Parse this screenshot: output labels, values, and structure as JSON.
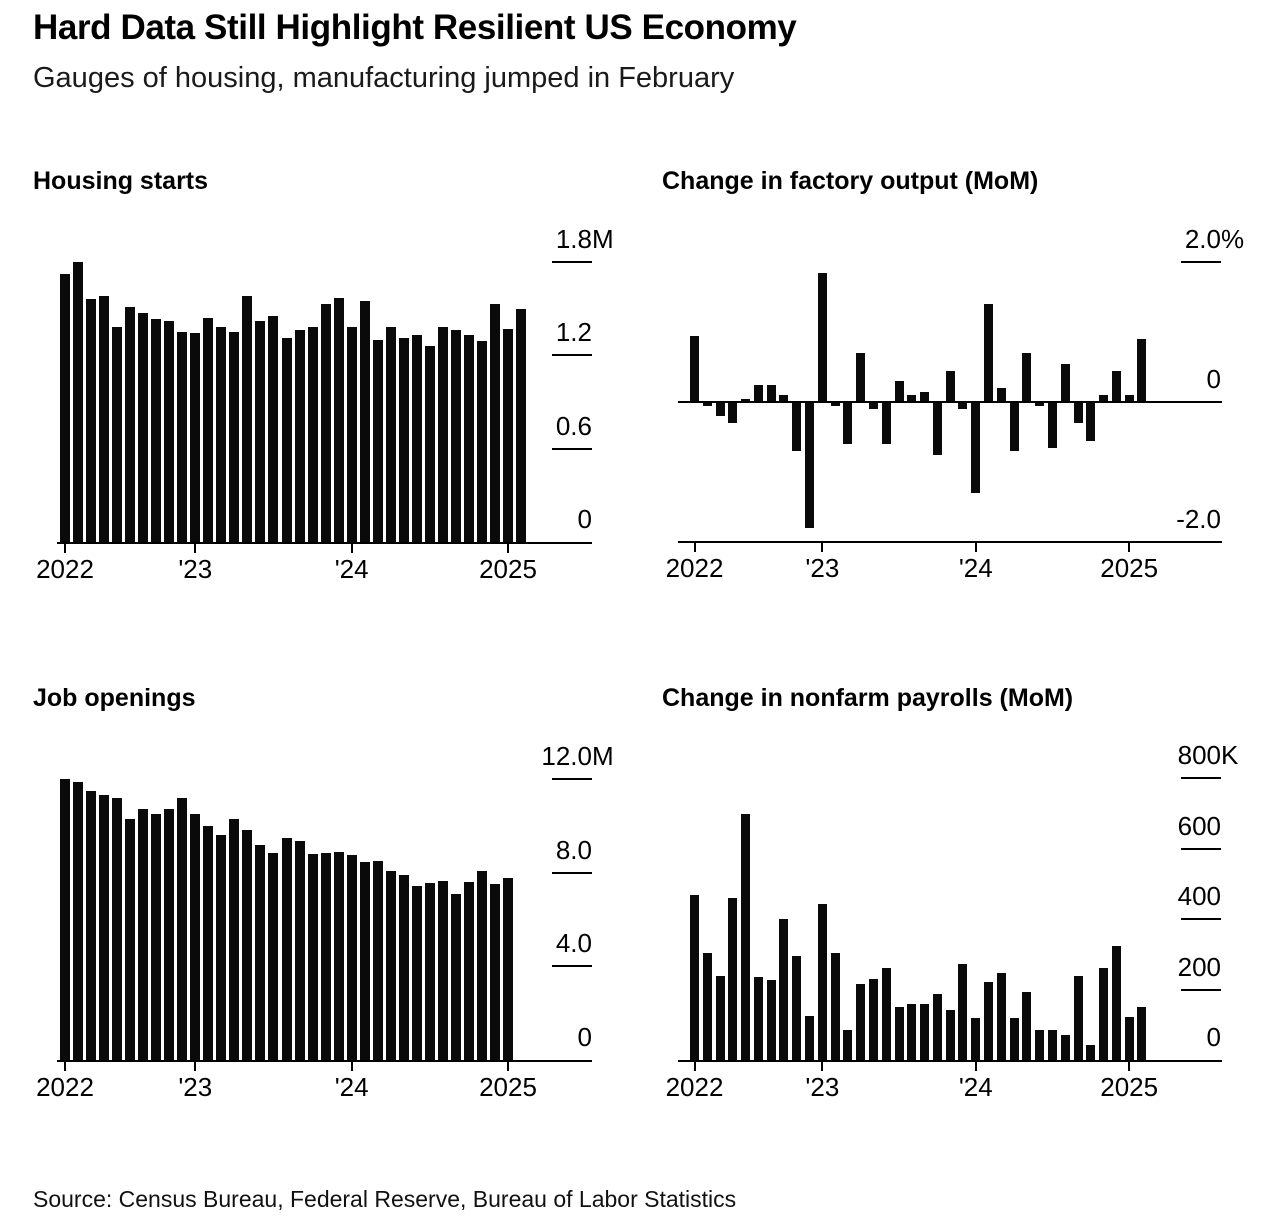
{
  "header": {
    "title": "Hard Data Still Highlight Resilient US Economy",
    "subtitle": "Gauges of housing, manufacturing jumped in February"
  },
  "source": "Source: Census Bureau, Federal Reserve, Bureau of Labor Statistics",
  "colors": {
    "bar": "#0a0a0a",
    "text": "#000000",
    "background": "#ffffff"
  },
  "chart_data": [
    {
      "id": "housing-starts",
      "type": "bar",
      "title": "Housing starts",
      "x_range": "Mar 2022 - Feb 2025, monthly",
      "ylim": [
        0,
        1.8
      ],
      "y_ticks": [
        {
          "num": "1.8",
          "suffix": "M",
          "value": 1.8
        },
        {
          "num": "1.2",
          "suffix": "",
          "value": 1.2
        },
        {
          "num": "0.6",
          "suffix": "",
          "value": 0.6
        },
        {
          "num": "0",
          "suffix": "",
          "value": 0
        }
      ],
      "x_ticks": [
        {
          "label": "2022",
          "index": 0
        },
        {
          "label": "'23",
          "index": 10
        },
        {
          "label": "'24",
          "index": 22
        },
        {
          "label": "2025",
          "index": 34
        }
      ],
      "values": [
        1.72,
        1.8,
        1.56,
        1.58,
        1.38,
        1.51,
        1.47,
        1.43,
        1.42,
        1.35,
        1.34,
        1.44,
        1.38,
        1.35,
        1.58,
        1.42,
        1.45,
        1.31,
        1.36,
        1.38,
        1.53,
        1.57,
        1.38,
        1.55,
        1.3,
        1.38,
        1.31,
        1.33,
        1.26,
        1.38,
        1.36,
        1.33,
        1.29,
        1.53,
        1.37,
        1.5
      ]
    },
    {
      "id": "factory-output",
      "type": "bar",
      "title": "Change in factory output (MoM)",
      "x_range": "Mar 2022 - Feb 2025, monthly",
      "ylim": [
        -2.0,
        2.0
      ],
      "y_ticks": [
        {
          "num": "2.0",
          "suffix": "%",
          "value": 2.0
        },
        {
          "num": "0",
          "suffix": "",
          "value": 0
        },
        {
          "num": "-2.0",
          "suffix": "",
          "value": -2.0
        }
      ],
      "x_ticks": [
        {
          "label": "2022",
          "index": 0
        },
        {
          "label": "'23",
          "index": 10
        },
        {
          "label": "'24",
          "index": 22
        },
        {
          "label": "2025",
          "index": 34
        }
      ],
      "values": [
        0.95,
        -0.05,
        -0.2,
        -0.3,
        0.05,
        0.25,
        0.25,
        0.1,
        -0.7,
        -1.8,
        1.85,
        -0.05,
        -0.6,
        0.7,
        -0.1,
        -0.6,
        0.3,
        0.1,
        0.15,
        -0.75,
        0.45,
        -0.1,
        -1.3,
        1.4,
        0.2,
        -0.7,
        0.7,
        -0.05,
        -0.65,
        0.55,
        -0.3,
        -0.55,
        0.1,
        0.45,
        0.1,
        0.9
      ]
    },
    {
      "id": "job-openings",
      "type": "bar",
      "title": "Job openings",
      "x_range": "Mar 2022 - Jan 2025, monthly",
      "ylim": [
        0,
        12.0
      ],
      "y_ticks": [
        {
          "num": "12.0",
          "suffix": "M",
          "value": 12.0
        },
        {
          "num": "8.0",
          "suffix": "",
          "value": 8.0
        },
        {
          "num": "4.0",
          "suffix": "",
          "value": 4.0
        },
        {
          "num": "0",
          "suffix": "",
          "value": 0
        }
      ],
      "x_ticks": [
        {
          "label": "2022",
          "index": 0
        },
        {
          "label": "'23",
          "index": 10
        },
        {
          "label": "'24",
          "index": 22
        },
        {
          "label": "2025",
          "index": 34
        }
      ],
      "values": [
        12.0,
        11.85,
        11.5,
        11.3,
        11.2,
        10.3,
        10.7,
        10.5,
        10.7,
        11.2,
        10.5,
        10.0,
        9.6,
        10.3,
        9.8,
        9.2,
        8.85,
        9.5,
        9.35,
        8.8,
        8.85,
        8.9,
        8.75,
        8.45,
        8.5,
        8.05,
        7.9,
        7.45,
        7.55,
        7.65,
        7.1,
        7.6,
        8.05,
        7.5,
        7.75
      ]
    },
    {
      "id": "nonfarm-payrolls",
      "type": "bar",
      "title": "Change in nonfarm payrolls (MoM)",
      "x_range": "Mar 2022 - Feb 2025, monthly",
      "ylim": [
        0,
        800
      ],
      "y_ticks": [
        {
          "num": "800",
          "suffix": "K",
          "value": 800
        },
        {
          "num": "600",
          "suffix": "",
          "value": 600
        },
        {
          "num": "400",
          "suffix": "",
          "value": 400
        },
        {
          "num": "200",
          "suffix": "",
          "value": 200
        },
        {
          "num": "0",
          "suffix": "",
          "value": 0
        }
      ],
      "x_ticks": [
        {
          "label": "2022",
          "index": 0
        },
        {
          "label": "'23",
          "index": 10
        },
        {
          "label": "'24",
          "index": 22
        },
        {
          "label": "2025",
          "index": 34
        }
      ],
      "values": [
        470,
        305,
        240,
        460,
        700,
        237,
        226,
        400,
        295,
        125,
        444,
        305,
        85,
        215,
        230,
        260,
        150,
        160,
        160,
        187,
        142,
        272,
        120,
        222,
        246,
        118,
        193,
        85,
        85,
        70,
        240,
        44,
        260,
        323,
        122,
        151
      ]
    }
  ]
}
